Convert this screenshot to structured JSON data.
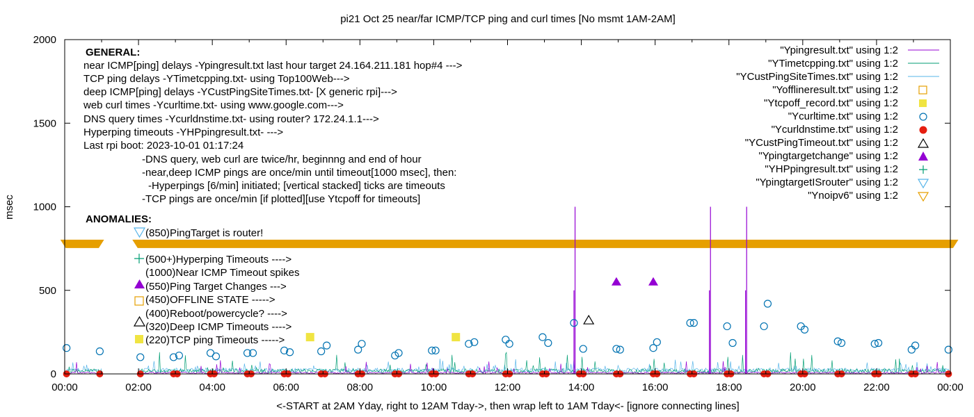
{
  "chart_data": {
    "type": "line",
    "title": "pi21 Oct 25  near/far ICMP/TCP ping and curl times [No msmt 1AM-2AM]",
    "xlabel": "<-START at 2AM Yday, right to 12AM Tday->, then wrap left to 1AM Tday<- [ignore connecting lines]",
    "ylabel": "msec",
    "xlim": [
      0,
      24
    ],
    "ylim": [
      0,
      2000
    ],
    "x_tick_labels": [
      "00:00",
      "02:00",
      "04:00",
      "06:00",
      "08:00",
      "10:00",
      "12:00",
      "14:00",
      "16:00",
      "18:00",
      "20:00",
      "22:00",
      "00:00"
    ],
    "y_ticks": [
      0,
      500,
      1000,
      1500,
      2000
    ],
    "grid": false,
    "legend_position": "top-right",
    "legend": [
      {
        "label": "\"Ypingresult.txt\" using 1:2",
        "style": "line",
        "color": "#9400d3"
      },
      {
        "label": "\"YTimetcpping.txt\" using 1:2",
        "style": "line",
        "color": "#009e73"
      },
      {
        "label": "\"YCustPingSiteTimes.txt\" using 1:2",
        "style": "line",
        "color": "#56b4e9"
      },
      {
        "label": "\"Yofflineresult.txt\" using 1:2",
        "style": "open-square",
        "color": "#e69f00"
      },
      {
        "label": "\"Ytcpoff_record.txt\" using 1:2",
        "style": "filled-square",
        "color": "#f0e442"
      },
      {
        "label": "\"Ycurltime.txt\" using 1:2",
        "style": "open-circle",
        "color": "#0072b2"
      },
      {
        "label": "\"Ycurldnstime.txt\" using 1:2",
        "style": "filled-circle",
        "color": "#e51e10"
      },
      {
        "label": "\"YCustPingTimeout.txt\" using 1:2",
        "style": "open-triangle",
        "color": "#000000"
      },
      {
        "label": "\"Ypingtargetchange\" using 1:2",
        "style": "filled-triangle",
        "color": "#9400d3"
      },
      {
        "label": "\"YHPpingresult.txt\" using 1:2",
        "style": "plus",
        "color": "#009e73"
      },
      {
        "label": "\"YpingtargetISrouter\" using 1:2",
        "style": "open-down-triangle",
        "color": "#56b4e9"
      },
      {
        "label": "\"Ynoipv6\" using 1:2",
        "style": "open-down-triangle",
        "color": "#e69f00"
      }
    ],
    "info_block": {
      "general_heading": "GENERAL:",
      "lines": [
        "near ICMP[ping] delays -Ypingresult.txt last hour target 24.164.211.181 hop#4 --->",
        "TCP ping delays -YTimetcpping.txt- using Top100Web--->",
        "deep ICMP[ping] delays -YCustPingSiteTimes.txt- [X generic rpi]--->",
        "web curl times -Ycurltime.txt- using www.google.com--->",
        "DNS query times -Ycurldnstime.txt- using router? 172.24.1.1--->",
        "Hyperping timeouts -YHPpingresult.txt- --->",
        "Last rpi boot: 2023-10-01 01:17:24"
      ],
      "notes": [
        "-DNS query, web curl are twice/hr, beginnng and end of hour",
        "-near,deep ICMP pings are once/min until timeout[1000 msec], then:",
        "-Hyperpings [6/min] initiated; [vertical stacked] ticks are timeouts",
        "-TCP pings are once/min [if plotted][use Ytcpoff for timeouts]"
      ],
      "anomalies_heading": "ANOMALIES:",
      "anomalies": [
        "(850)PingTarget is router!",
        "(500+)Hyperping Timeouts ---->",
        "(1000)Near ICMP Timeout spikes",
        "(550)Ping Target Changes --->",
        "(450)OFFLINE STATE ----->",
        "(400)Reboot/powercycle? ---->",
        "(320)Deep ICMP Timeouts ---->",
        "(220)TCP ping Timeouts ----->"
      ]
    },
    "series": {
      "noipv6_band": {
        "y": 780,
        "x_ranges": [
          [
            -0.1,
            1.05
          ],
          [
            1.85,
            24.2
          ]
        ]
      },
      "ping_spikes": [
        {
          "x": 13.83,
          "y": 1000
        },
        {
          "x": 13.8,
          "y": 500
        },
        {
          "x": 17.5,
          "y": 1000
        },
        {
          "x": 17.47,
          "y": 500
        },
        {
          "x": 18.48,
          "y": 1000
        },
        {
          "x": 18.45,
          "y": 500
        }
      ],
      "ping_target_changes": [
        {
          "x": 14.95,
          "y": 550
        },
        {
          "x": 15.95,
          "y": 550
        }
      ],
      "cust_ping_timeouts": [
        {
          "x": 14.2,
          "y": 320
        }
      ],
      "tcp_ping_timeouts": [
        {
          "x": 6.65,
          "y": 220
        },
        {
          "x": 10.6,
          "y": 220
        }
      ],
      "curl_times": [
        [
          0.05,
          155
        ],
        [
          0.95,
          135
        ],
        [
          2.05,
          100
        ],
        [
          2.95,
          100
        ],
        [
          3.1,
          110
        ],
        [
          3.95,
          125
        ],
        [
          4.1,
          105
        ],
        [
          4.95,
          125
        ],
        [
          5.1,
          125
        ],
        [
          5.95,
          140
        ],
        [
          6.1,
          130
        ],
        [
          6.95,
          135
        ],
        [
          7.1,
          170
        ],
        [
          7.95,
          145
        ],
        [
          8.05,
          180
        ],
        [
          8.95,
          110
        ],
        [
          9.05,
          125
        ],
        [
          9.95,
          140
        ],
        [
          10.05,
          140
        ],
        [
          10.95,
          180
        ],
        [
          11.1,
          190
        ],
        [
          11.95,
          205
        ],
        [
          12.05,
          180
        ],
        [
          12.95,
          220
        ],
        [
          13.1,
          185
        ],
        [
          13.8,
          305
        ],
        [
          14.05,
          150
        ],
        [
          14.95,
          150
        ],
        [
          15.05,
          145
        ],
        [
          15.95,
          155
        ],
        [
          16.05,
          190
        ],
        [
          16.95,
          305
        ],
        [
          17.05,
          305
        ],
        [
          17.95,
          285
        ],
        [
          18.1,
          185
        ],
        [
          18.95,
          285
        ],
        [
          19.05,
          420
        ],
        [
          19.95,
          285
        ],
        [
          20.05,
          265
        ],
        [
          20.95,
          195
        ],
        [
          21.05,
          185
        ],
        [
          21.95,
          180
        ],
        [
          22.05,
          185
        ],
        [
          22.95,
          145
        ],
        [
          23.05,
          170
        ],
        [
          23.95,
          145
        ]
      ],
      "dns_times": [
        [
          0.05,
          0
        ],
        [
          0.95,
          0
        ],
        [
          2.05,
          0
        ],
        [
          2.95,
          0
        ],
        [
          3.05,
          0
        ],
        [
          3.95,
          0
        ],
        [
          4.05,
          0
        ],
        [
          4.95,
          0
        ],
        [
          5.05,
          0
        ],
        [
          5.95,
          0
        ],
        [
          6.05,
          0
        ],
        [
          6.95,
          0
        ],
        [
          7.05,
          0
        ],
        [
          7.95,
          0
        ],
        [
          8.05,
          0
        ],
        [
          8.95,
          0
        ],
        [
          9.05,
          0
        ],
        [
          9.95,
          0
        ],
        [
          10.05,
          0
        ],
        [
          10.95,
          0
        ],
        [
          11.05,
          0
        ],
        [
          11.95,
          0
        ],
        [
          12.05,
          0
        ],
        [
          12.95,
          0
        ],
        [
          13.05,
          0
        ],
        [
          13.95,
          0
        ],
        [
          14.05,
          0
        ],
        [
          14.95,
          0
        ],
        [
          15.05,
          0
        ],
        [
          15.95,
          0
        ],
        [
          16.05,
          0
        ],
        [
          16.95,
          0
        ],
        [
          17.05,
          0
        ],
        [
          17.95,
          0
        ],
        [
          18.05,
          0
        ],
        [
          18.95,
          0
        ],
        [
          19.05,
          0
        ],
        [
          19.95,
          0
        ],
        [
          20.05,
          0
        ],
        [
          20.95,
          0
        ],
        [
          21.05,
          0
        ],
        [
          21.95,
          0
        ],
        [
          22.05,
          0
        ],
        [
          22.95,
          0
        ],
        [
          23.05,
          0
        ],
        [
          23.95,
          0
        ]
      ]
    }
  }
}
